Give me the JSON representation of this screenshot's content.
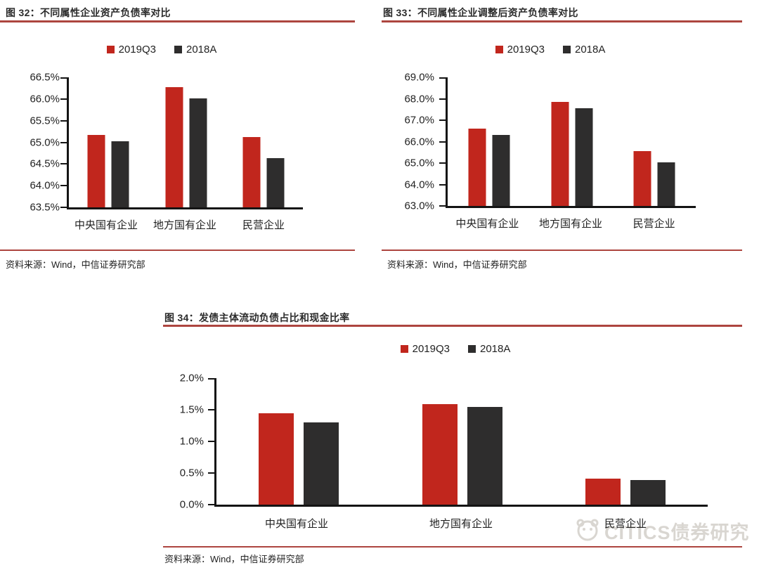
{
  "palette": {
    "series_red": "#c1261d",
    "series_dark": "#2e2d2d",
    "rule_red": "#ad453f",
    "axis_black": "#141414",
    "watermark_gray": "#d9d6d1"
  },
  "watermark": {
    "text": "CITICS债券研究",
    "logo": "citics-panda-logo"
  },
  "chart_data": [
    {
      "type": "bar",
      "title": "图 32：不同属性企业资产负债率对比",
      "categories": [
        "中央国有企业",
        "地方国有企业",
        "民营企业"
      ],
      "series": [
        {
          "name": "2019Q3",
          "color": "#c1261d",
          "values": [
            65.17,
            66.27,
            65.12
          ]
        },
        {
          "name": "2018A",
          "color": "#2e2d2d",
          "values": [
            65.02,
            66.01,
            64.64
          ]
        }
      ],
      "ylim": [
        63.5,
        66.5
      ],
      "ytick_labels": [
        "66.5%",
        "66.0%",
        "65.5%",
        "65.0%",
        "64.5%",
        "64.0%",
        "63.5%"
      ],
      "xlabel": "",
      "ylabel": "",
      "grid": false,
      "legend_position": "top-center",
      "source": "资料来源：Wind，中信证券研究部"
    },
    {
      "type": "bar",
      "title": "图 33：不同属性企业调整后资产负债率对比",
      "categories": [
        "中央国有企业",
        "地方国有企业",
        "民营企业"
      ],
      "series": [
        {
          "name": "2019Q3",
          "color": "#c1261d",
          "values": [
            66.6,
            67.85,
            65.55
          ]
        },
        {
          "name": "2018A",
          "color": "#2e2d2d",
          "values": [
            66.3,
            67.55,
            65.05
          ]
        }
      ],
      "ylim": [
        63.0,
        69.0
      ],
      "ytick_labels": [
        "69.0%",
        "68.0%",
        "67.0%",
        "66.0%",
        "65.0%",
        "64.0%",
        "63.0%"
      ],
      "xlabel": "",
      "ylabel": "",
      "grid": false,
      "legend_position": "top-center",
      "source": "资料来源：Wind，中信证券研究部"
    },
    {
      "type": "bar",
      "title": "图 34：发债主体流动负债占比和现金比率",
      "categories": [
        "中央国有企业",
        "地方国有企业",
        "民营企业"
      ],
      "series": [
        {
          "name": "2019Q3",
          "color": "#c1261d",
          "values": [
            1.44,
            1.59,
            0.41
          ]
        },
        {
          "name": "2018A",
          "color": "#2e2d2d",
          "values": [
            1.3,
            1.54,
            0.39
          ]
        }
      ],
      "ylim": [
        0.0,
        2.0
      ],
      "ytick_labels": [
        "2.0%",
        "1.5%",
        "1.0%",
        "0.5%",
        "0.0%"
      ],
      "xlabel": "",
      "ylabel": "",
      "grid": false,
      "legend_position": "top-center",
      "source": "资料来源：Wind，中信证券研究部"
    }
  ]
}
